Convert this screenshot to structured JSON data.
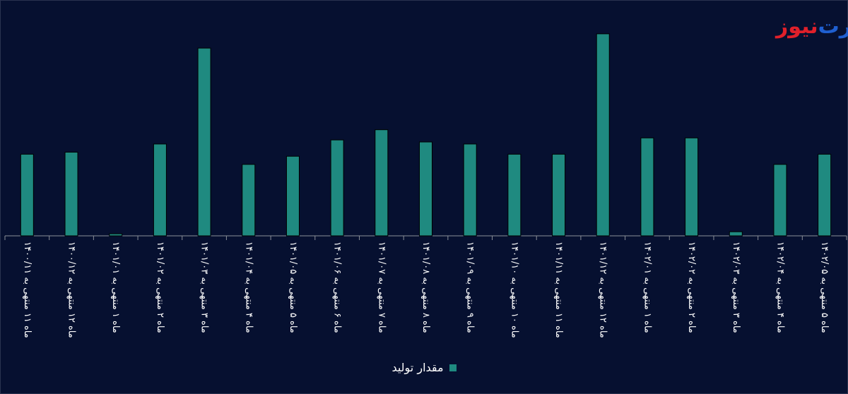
{
  "brand": {
    "logo_red": "نیوز",
    "logo_blue": "رت"
  },
  "colors": {
    "background": "#061030",
    "bar": "#1f8a80",
    "bar_outline": "#000000",
    "axis": "#8a8f99",
    "tick_label": "#ffffff",
    "logo_red": "#e0202a",
    "logo_blue": "#1f5fd0"
  },
  "chart_data": {
    "type": "bar",
    "title": "",
    "xlabel": "",
    "ylabel": "",
    "ylim": [
      0,
      100
    ],
    "grid": false,
    "legend_position": "bottom",
    "categories": [
      "ماه ۱۱ منتهی به ۱۴۰۰/۱۱",
      "ماه ۱۲ منتهی به ۱۴۰۰/۱۲",
      "ماه ۱ منتهی به ۱۴۰۱/۰۱",
      "ماه ۲ منتهی به ۱۴۰۱/۰۲",
      "ماه ۳ منتهی به ۱۴۰۱/۰۳",
      "ماه ۴ منتهی به ۱۴۰۱/۰۴",
      "ماه ۵ منتهی به ۱۴۰۱/۰۵",
      "ماه ۶ منتهی به ۱۴۰۱/۰۶",
      "ماه ۷ منتهی به ۱۴۰۱/۰۷",
      "ماه ۸ منتهی به ۱۴۰۱/۰۸",
      "ماه ۹ منتهی به ۱۴۰۱/۰۹",
      "ماه ۱۰ منتهی به ۱۴۰۱/۱۰",
      "ماه ۱۱ منتهی به ۱۴۰۱/۱۱",
      "ماه ۱۲ منتهی به ۱۴۰۱/۱۲",
      "ماه ۱ منتهی به ۱۴۰۲/۰۱",
      "ماه ۲ منتهی به ۱۴۰۲/۰۲",
      "ماه ۳ منتهی به ۱۴۰۲/۰۳",
      "ماه ۴ منتهی به ۱۴۰۲/۰۴",
      "ماه ۵ منتهی به ۱۴۰۲/۰۵"
    ],
    "series": [
      {
        "name": "مقدار تولید",
        "values": [
          40,
          41,
          1,
          45,
          92,
          35,
          39,
          47,
          52,
          46,
          45,
          40,
          40,
          99,
          48,
          48,
          2,
          35,
          40
        ]
      }
    ]
  }
}
